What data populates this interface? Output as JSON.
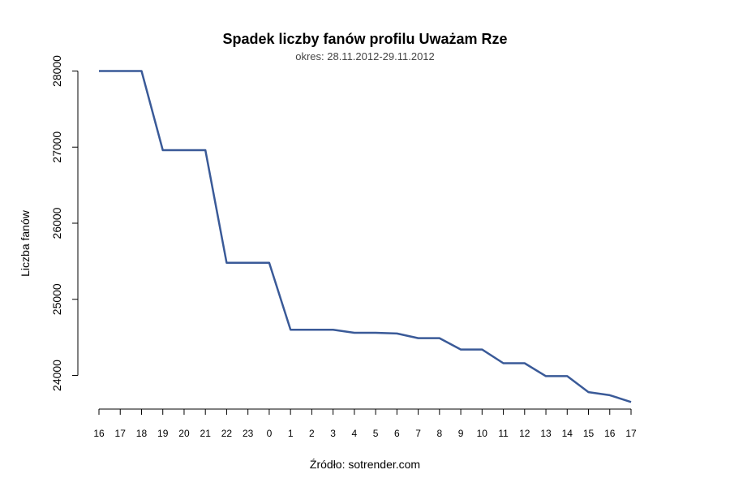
{
  "chart_data": {
    "type": "line",
    "title": "Spadek liczby fanów profilu Uważam Rze",
    "subtitle": "okres: 28.11.2012-29.11.2012",
    "xlabel": "Źródło: sotrender.com",
    "ylabel": "Liczba fanów",
    "categories": [
      "16",
      "17",
      "18",
      "19",
      "20",
      "21",
      "22",
      "23",
      "0",
      "1",
      "2",
      "3",
      "4",
      "5",
      "6",
      "7",
      "8",
      "9",
      "10",
      "11",
      "12",
      "13",
      "14",
      "15",
      "16",
      "17"
    ],
    "yticks": [
      24000,
      25000,
      26000,
      27000,
      28000
    ],
    "ylim": [
      23600,
      28080
    ],
    "grid": false,
    "series": [
      {
        "values": [
          28000,
          28000,
          28000,
          26960,
          26960,
          26960,
          25480,
          25480,
          25480,
          24600,
          24600,
          24600,
          24560,
          24560,
          24550,
          24490,
          24490,
          24340,
          24340,
          24160,
          24160,
          23990,
          23990,
          23780,
          23740,
          23650
        ],
        "color": "#3a5a98"
      }
    ]
  }
}
